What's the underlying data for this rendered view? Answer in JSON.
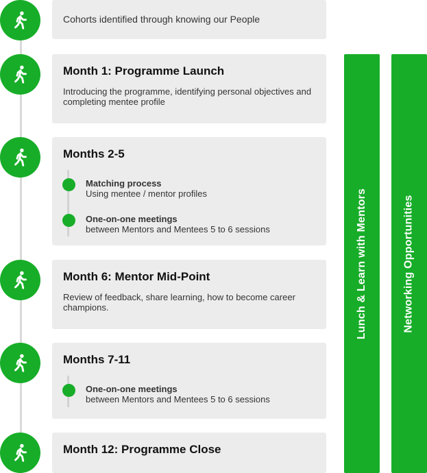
{
  "steps": [
    {
      "text": "Cohorts identified through knowing our People"
    },
    {
      "title": "Month 1: Programme Launch",
      "desc": "Introducing the programme, identifying personal objectives and completing mentee profile"
    },
    {
      "title": "Months 2-5",
      "items": [
        {
          "title": "Matching process",
          "desc": "Using mentee / mentor profiles"
        },
        {
          "title": "One-on-one meetings",
          "desc": "between Mentors and Mentees 5 to 6 sessions"
        }
      ]
    },
    {
      "title": "Month 6: Mentor Mid-Point",
      "desc": "Review of feedback, share learning, how to become career champions."
    },
    {
      "title": "Months 7-11",
      "items": [
        {
          "title": "One-on-one meetings",
          "desc": "between Mentors and Mentees 5 to 6 sessions"
        }
      ]
    },
    {
      "title": "Month 12: Programme Close"
    }
  ],
  "bars": [
    {
      "label": "Lunch & Learn with Mentors"
    },
    {
      "label": "Networking Opportunities"
    }
  ],
  "colors": {
    "accent": "#17ad28",
    "card": "#ececec",
    "line": "#d9d9d9"
  },
  "icon": "person-walking-icon"
}
